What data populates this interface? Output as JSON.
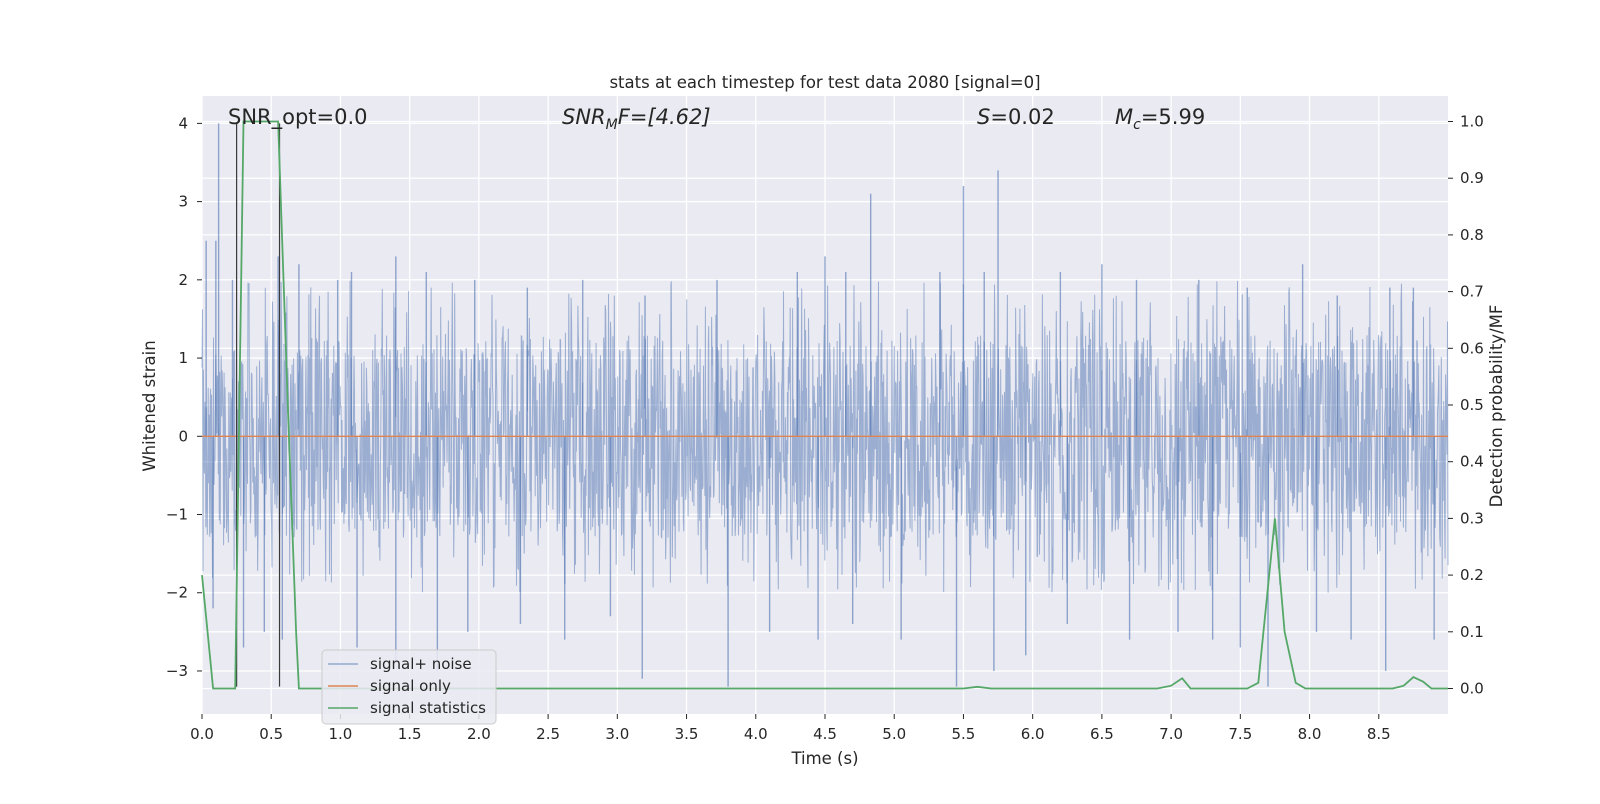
{
  "chart_data": {
    "type": "line",
    "title": "stats at each timestep for test data 2080 [signal=0]",
    "xlabel": "Time (s)",
    "ylabel_left": "Whitened strain",
    "ylabel_right": "Detection probability/MF",
    "xlim": [
      0.0,
      9.0
    ],
    "ylim_left": [
      -3.55,
      4.35
    ],
    "ylim_right": [
      -0.045,
      1.045
    ],
    "x_ticks": [
      "0.0",
      "0.5",
      "1.0",
      "1.5",
      "2.0",
      "2.5",
      "3.0",
      "3.5",
      "4.0",
      "4.5",
      "5.0",
      "5.5",
      "6.0",
      "6.5",
      "7.0",
      "7.5",
      "8.0",
      "8.5"
    ],
    "y_ticks_left": [
      "4",
      "3",
      "2",
      "1",
      "0",
      "−1",
      "−2",
      "−3"
    ],
    "y_ticks_right": [
      "1.0",
      "0.9",
      "0.8",
      "0.7",
      "0.6",
      "0.5",
      "0.4",
      "0.3",
      "0.2",
      "0.1",
      "0.0"
    ],
    "grid": true,
    "legend_position": "lower-left",
    "annotations": {
      "snr_opt": "SNR_opt=0.0",
      "snr_mf_base": "SNR",
      "snr_mf_sub": "M",
      "snr_mf_rest": "F=[4.62]",
      "s_var": "S",
      "s_rest": "=0.02",
      "mc_base": "M",
      "mc_sub": "c",
      "mc_rest": "=5.99"
    },
    "vertical_markers": {
      "x": [
        0.25,
        0.56
      ],
      "y_range": [
        -3.2,
        4.0
      ]
    },
    "noise_spikes": {
      "positive": [
        [
          0.03,
          2.5
        ],
        [
          0.1,
          2.5
        ],
        [
          0.12,
          4.0
        ],
        [
          0.22,
          2.0
        ],
        [
          0.55,
          2.3
        ],
        [
          0.7,
          2.2
        ],
        [
          0.98,
          2.0
        ],
        [
          1.08,
          2.1
        ],
        [
          1.4,
          2.3
        ],
        [
          1.62,
          2.1
        ],
        [
          1.97,
          2.0
        ],
        [
          2.35,
          1.9
        ],
        [
          2.75,
          2.0
        ],
        [
          3.2,
          1.8
        ],
        [
          3.72,
          2.0
        ],
        [
          4.3,
          2.1
        ],
        [
          4.5,
          2.3
        ],
        [
          4.65,
          2.1
        ],
        [
          4.83,
          3.1
        ],
        [
          5.33,
          2.1
        ],
        [
          5.5,
          3.2
        ],
        [
          5.75,
          3.4
        ],
        [
          5.65,
          2.1
        ],
        [
          6.2,
          2.1
        ],
        [
          6.5,
          2.2
        ],
        [
          6.75,
          2.0
        ],
        [
          7.2,
          2.0
        ],
        [
          7.55,
          1.9
        ],
        [
          7.95,
          2.2
        ],
        [
          8.2,
          1.8
        ],
        [
          8.58,
          1.9
        ],
        [
          8.75,
          1.9
        ]
      ],
      "negative": [
        [
          0.08,
          -2.2
        ],
        [
          0.3,
          -2.7
        ],
        [
          0.45,
          -2.5
        ],
        [
          0.58,
          -2.6
        ],
        [
          1.12,
          -2.7
        ],
        [
          1.4,
          -2.9
        ],
        [
          1.7,
          -3.0
        ],
        [
          1.92,
          -2.5
        ],
        [
          2.3,
          -2.4
        ],
        [
          2.62,
          -2.6
        ],
        [
          2.95,
          -2.3
        ],
        [
          3.18,
          -3.1
        ],
        [
          3.8,
          -3.2
        ],
        [
          4.1,
          -2.5
        ],
        [
          4.45,
          -2.6
        ],
        [
          4.7,
          -2.4
        ],
        [
          5.05,
          -2.6
        ],
        [
          5.45,
          -3.2
        ],
        [
          5.72,
          -3.0
        ],
        [
          5.95,
          -2.8
        ],
        [
          6.25,
          -2.4
        ],
        [
          6.7,
          -2.6
        ],
        [
          7.05,
          -2.5
        ],
        [
          7.3,
          -2.6
        ],
        [
          7.5,
          -2.7
        ],
        [
          7.7,
          -3.2
        ],
        [
          8.05,
          -2.5
        ],
        [
          8.3,
          -2.6
        ],
        [
          8.55,
          -3.0
        ],
        [
          8.9,
          -2.6
        ]
      ]
    },
    "series": [
      {
        "name": "signal+ noise",
        "axis": "left",
        "color": "#4c72b0",
        "kind": "whitened noise, typical band ±1.3",
        "envelope": {
          "typical": 1.3,
          "peak": 2.0
        }
      },
      {
        "name": "signal only",
        "axis": "left",
        "color": "#dd8452",
        "x": [
          0.0,
          9.0
        ],
        "y": [
          0.0,
          0.0
        ]
      },
      {
        "name": "signal statistics",
        "axis": "right",
        "color": "#55a868",
        "x": [
          0.0,
          0.08,
          0.2,
          0.24,
          0.3,
          0.55,
          0.62,
          0.68,
          0.7,
          1.0,
          5.5,
          5.6,
          5.7,
          6.9,
          7.0,
          7.08,
          7.14,
          7.55,
          7.63,
          7.75,
          7.82,
          7.9,
          7.97,
          8.6,
          8.68,
          8.75,
          8.82,
          8.88,
          9.0
        ],
        "y": [
          0.2,
          0.0,
          0.0,
          0.0,
          1.0,
          1.0,
          0.5,
          0.1,
          0.0,
          0.0,
          0.0,
          0.003,
          0.0,
          0.0,
          0.005,
          0.018,
          0.0,
          0.0,
          0.01,
          0.3,
          0.1,
          0.01,
          0.0,
          0.0,
          0.005,
          0.02,
          0.012,
          0.0,
          0.0
        ]
      }
    ]
  }
}
